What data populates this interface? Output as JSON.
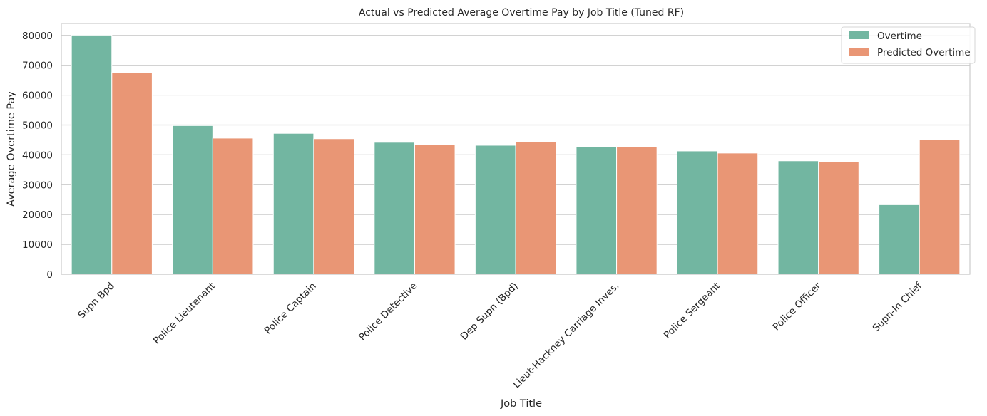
{
  "chart_data": {
    "type": "bar",
    "title": "Actual vs Predicted Average Overtime Pay by Job Title (Tuned RF)",
    "xlabel": "Job Title",
    "ylabel": "Average Overtime Pay",
    "ylim": [
      0,
      84000
    ],
    "yticks": [
      0,
      10000,
      20000,
      30000,
      40000,
      50000,
      60000,
      70000,
      80000
    ],
    "grid": "y",
    "legend_position": "top-right",
    "categories": [
      "Supn Bpd",
      "Police Lieutenant",
      "Police Captain",
      "Police Detective",
      "Dep Supn (Bpd)",
      "Lieut-Hackney Carriage Inves.",
      "Police Sergeant",
      "Police Officer",
      "Supn-In Chief"
    ],
    "series": [
      {
        "name": "Overtime",
        "color": "#72b6a1",
        "values": [
          80100,
          49800,
          47200,
          44200,
          43200,
          42700,
          41300,
          38000,
          23300
        ]
      },
      {
        "name": "Predicted Overtime",
        "color": "#e99675",
        "values": [
          67600,
          45600,
          45400,
          43400,
          44400,
          42700,
          40600,
          37700,
          45100
        ]
      }
    ]
  }
}
